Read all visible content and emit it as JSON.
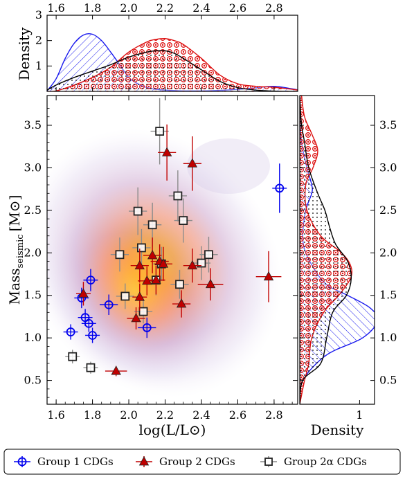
{
  "chart_data": {
    "type": "scatter",
    "main": {
      "xlabel": "log(L/L⊙)",
      "ylabel": "Mass",
      "ylabel_sub": "seismic",
      "ylabel_unit": "[M⊙]",
      "xlim": [
        1.55,
        2.93
      ],
      "ylim": [
        0.22,
        3.85
      ],
      "xticks": [
        "1.6",
        "1.8",
        "2.0",
        "2.2",
        "2.4",
        "2.6",
        "2.8"
      ],
      "yticks": [
        "0.5",
        "1.0",
        "1.5",
        "2.0",
        "2.5",
        "3.0",
        "3.5"
      ],
      "background": "kde-density-contours"
    },
    "top_panel": {
      "ylabel": "Density",
      "yticks": [
        "1",
        "2",
        "3"
      ],
      "ylim": [
        0,
        3
      ],
      "top_xticks": [
        "1.6",
        "1.8",
        "2.0",
        "2.2",
        "2.4",
        "2.6",
        "2.8"
      ]
    },
    "right_panel": {
      "xlabel": "Density",
      "xticks": [
        "1"
      ],
      "xlim": [
        0,
        1.25
      ],
      "yticks": [
        "0.5",
        "1.0",
        "1.5",
        "2.0",
        "2.5",
        "3.0",
        "3.5"
      ]
    },
    "series": [
      {
        "name": "Group 1 CDGs",
        "marker": "circle-open-crosshair",
        "color": "#0000ee",
        "points": [
          {
            "x": 1.68,
            "y": 1.07,
            "xerr": 0.04,
            "yerr": 0.09
          },
          {
            "x": 1.74,
            "y": 1.47,
            "xerr": 0.04,
            "yerr": 0.12
          },
          {
            "x": 1.76,
            "y": 1.24,
            "xerr": 0.04,
            "yerr": 0.1
          },
          {
            "x": 1.78,
            "y": 1.17,
            "xerr": 0.04,
            "yerr": 0.1
          },
          {
            "x": 1.79,
            "y": 1.68,
            "xerr": 0.04,
            "yerr": 0.13
          },
          {
            "x": 1.8,
            "y": 1.03,
            "xerr": 0.04,
            "yerr": 0.09
          },
          {
            "x": 1.89,
            "y": 1.39,
            "xerr": 0.05,
            "yerr": 0.12
          },
          {
            "x": 2.1,
            "y": 1.12,
            "xerr": 0.05,
            "yerr": 0.12
          },
          {
            "x": 2.83,
            "y": 2.76,
            "xerr": 0.04,
            "yerr": 0.29
          }
        ]
      },
      {
        "name": "Group 2 CDGs",
        "marker": "triangle-filled",
        "color": "#c00000",
        "points": [
          {
            "x": 1.75,
            "y": 1.52,
            "xerr": 0.04,
            "yerr": 0.14
          },
          {
            "x": 1.93,
            "y": 0.61,
            "xerr": 0.06,
            "yerr": 0.06
          },
          {
            "x": 2.04,
            "y": 1.23,
            "xerr": 0.05,
            "yerr": 0.13
          },
          {
            "x": 2.06,
            "y": 1.85,
            "xerr": 0.05,
            "yerr": 0.2
          },
          {
            "x": 2.06,
            "y": 1.48,
            "xerr": 0.04,
            "yerr": 0.16
          },
          {
            "x": 2.1,
            "y": 1.67,
            "xerr": 0.05,
            "yerr": 0.17
          },
          {
            "x": 2.13,
            "y": 1.97,
            "xerr": 0.05,
            "yerr": 0.21
          },
          {
            "x": 2.15,
            "y": 1.68,
            "xerr": 0.05,
            "yerr": 0.17
          },
          {
            "x": 2.17,
            "y": 1.9,
            "xerr": 0.05,
            "yerr": 0.2
          },
          {
            "x": 2.19,
            "y": 1.87,
            "xerr": 0.05,
            "yerr": 0.2
          },
          {
            "x": 2.21,
            "y": 3.18,
            "xerr": 0.05,
            "yerr": 0.33
          },
          {
            "x": 2.29,
            "y": 1.4,
            "xerr": 0.05,
            "yerr": 0.16
          },
          {
            "x": 2.35,
            "y": 3.05,
            "xerr": 0.05,
            "yerr": 0.32
          },
          {
            "x": 2.35,
            "y": 1.85,
            "xerr": 0.05,
            "yerr": 0.2
          },
          {
            "x": 2.45,
            "y": 1.63,
            "xerr": 0.07,
            "yerr": 0.19
          },
          {
            "x": 2.77,
            "y": 1.72,
            "xerr": 0.07,
            "yerr": 0.3
          }
        ]
      },
      {
        "name": "Group 2α CDGs",
        "marker": "square-open",
        "color": "#444444",
        "points": [
          {
            "x": 1.69,
            "y": 0.78,
            "xerr": 0.04,
            "yerr": 0.08
          },
          {
            "x": 1.79,
            "y": 0.65,
            "xerr": 0.04,
            "yerr": 0.07
          },
          {
            "x": 1.95,
            "y": 1.98,
            "xerr": 0.05,
            "yerr": 0.2
          },
          {
            "x": 1.98,
            "y": 1.49,
            "xerr": 0.05,
            "yerr": 0.15
          },
          {
            "x": 2.05,
            "y": 2.49,
            "xerr": 0.05,
            "yerr": 0.28
          },
          {
            "x": 2.07,
            "y": 2.06,
            "xerr": 0.05,
            "yerr": 0.22
          },
          {
            "x": 2.08,
            "y": 1.31,
            "xerr": 0.05,
            "yerr": 0.14
          },
          {
            "x": 2.13,
            "y": 2.33,
            "xerr": 0.05,
            "yerr": 0.26
          },
          {
            "x": 2.15,
            "y": 1.68,
            "xerr": 0.05,
            "yerr": 0.18
          },
          {
            "x": 2.17,
            "y": 3.43,
            "xerr": 0.05,
            "yerr": 0.39
          },
          {
            "x": 2.18,
            "y": 1.87,
            "xerr": 0.05,
            "yerr": 0.2
          },
          {
            "x": 2.27,
            "y": 2.67,
            "xerr": 0.05,
            "yerr": 0.3
          },
          {
            "x": 2.28,
            "y": 1.63,
            "xerr": 0.05,
            "yerr": 0.17
          },
          {
            "x": 2.3,
            "y": 2.38,
            "xerr": 0.05,
            "yerr": 0.26
          },
          {
            "x": 2.4,
            "y": 1.88,
            "xerr": 0.05,
            "yerr": 0.2
          },
          {
            "x": 2.44,
            "y": 1.98,
            "xerr": 0.05,
            "yerr": 0.21
          }
        ]
      }
    ],
    "legend": {
      "placement": "bottom",
      "entries": [
        "Group 1 CDGs",
        "Group 2 CDGs",
        "Group 2α CDGs"
      ]
    },
    "marginal_x_density": [
      {
        "series": "Group 1 CDGs",
        "pattern": "hatch",
        "color": "#1a1aee",
        "x": [
          1.55,
          1.6,
          1.65,
          1.7,
          1.75,
          1.8,
          1.85,
          1.9,
          1.95,
          2.0,
          2.05,
          2.1,
          2.15,
          2.2,
          2.3,
          2.4,
          2.5,
          2.6,
          2.7,
          2.8,
          2.9,
          2.93
        ],
        "y": [
          0.02,
          0.5,
          1.3,
          1.9,
          2.22,
          2.25,
          2.0,
          1.55,
          1.05,
          0.55,
          0.3,
          0.15,
          0.08,
          0.05,
          0.02,
          0.02,
          0.04,
          0.08,
          0.14,
          0.2,
          0.1,
          0.06
        ]
      },
      {
        "series": "Group 2 CDGs",
        "pattern": "circles",
        "color": "#dd1111",
        "x": [
          1.55,
          1.6,
          1.7,
          1.8,
          1.9,
          2.0,
          2.1,
          2.15,
          2.2,
          2.25,
          2.3,
          2.4,
          2.5,
          2.6,
          2.7,
          2.8,
          2.9,
          2.93
        ],
        "y": [
          0.0,
          0.02,
          0.25,
          0.55,
          0.95,
          1.55,
          1.95,
          2.05,
          2.08,
          2.0,
          1.85,
          1.3,
          0.65,
          0.3,
          0.2,
          0.16,
          0.08,
          0.05
        ]
      },
      {
        "series": "Group 2α CDGs",
        "pattern": "dots",
        "color": "#000000",
        "x": [
          1.55,
          1.6,
          1.7,
          1.8,
          1.9,
          2.0,
          2.1,
          2.15,
          2.2,
          2.25,
          2.3,
          2.4,
          2.5,
          2.6,
          2.7,
          2.8,
          2.9,
          2.93
        ],
        "y": [
          0.05,
          0.25,
          0.55,
          0.8,
          1.05,
          1.35,
          1.55,
          1.6,
          1.6,
          1.5,
          1.3,
          0.85,
          0.4,
          0.15,
          0.05,
          0.01,
          0.0,
          0.0
        ]
      }
    ],
    "marginal_y_density": [
      {
        "series": "Group 1 CDGs",
        "pattern": "hatch",
        "color": "#1a1aee",
        "m": [
          0.22,
          0.5,
          0.8,
          1.0,
          1.2,
          1.35,
          1.5,
          1.6,
          1.7,
          1.8,
          2.0,
          2.2,
          2.5,
          2.7,
          2.8,
          3.0,
          3.3,
          3.6,
          3.85
        ],
        "d": [
          0.0,
          0.05,
          0.45,
          1.05,
          1.3,
          1.18,
          0.8,
          0.5,
          0.35,
          0.25,
          0.1,
          0.05,
          0.1,
          0.2,
          0.2,
          0.12,
          0.03,
          0.0,
          0.0
        ]
      },
      {
        "series": "Group 2 CDGs",
        "pattern": "circles",
        "color": "#dd1111",
        "m": [
          0.22,
          0.5,
          0.7,
          1.0,
          1.3,
          1.5,
          1.7,
          1.85,
          2.0,
          2.2,
          2.5,
          2.8,
          3.0,
          3.2,
          3.4,
          3.6,
          3.85
        ],
        "d": [
          0.0,
          0.08,
          0.15,
          0.2,
          0.4,
          0.65,
          0.85,
          0.85,
          0.7,
          0.35,
          0.12,
          0.1,
          0.22,
          0.3,
          0.2,
          0.08,
          0.03
        ]
      },
      {
        "series": "Group 2α CDGs",
        "pattern": "dots",
        "color": "#000000",
        "m": [
          0.22,
          0.5,
          0.7,
          1.0,
          1.3,
          1.5,
          1.7,
          1.9,
          2.1,
          2.3,
          2.5,
          2.7,
          3.0,
          3.3,
          3.5,
          3.7,
          3.85
        ],
        "d": [
          0.0,
          0.05,
          0.35,
          0.45,
          0.55,
          0.78,
          0.86,
          0.8,
          0.6,
          0.5,
          0.42,
          0.3,
          0.15,
          0.08,
          0.03,
          0.01,
          0.0
        ]
      }
    ]
  }
}
